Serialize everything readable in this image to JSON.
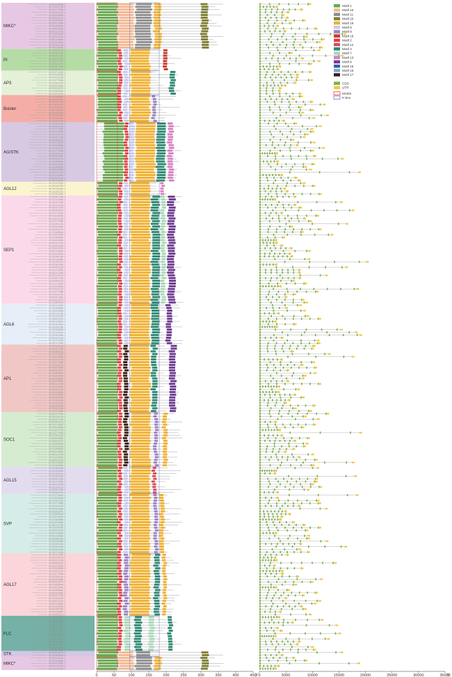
{
  "clades": [
    {
      "label": "MIKC*",
      "color": "#e7c8e4",
      "rows": 17
    },
    {
      "label": "PI",
      "color": "#b6dca6",
      "rows": 8
    },
    {
      "label": "AP3",
      "color": "#e4f1d8",
      "rows": 9
    },
    {
      "label": "Bsister",
      "color": "#f5aea7",
      "rows": 10
    },
    {
      "label": "AG/STK",
      "color": "#d7c9e2",
      "rows": 22
    },
    {
      "label": "AGL12",
      "color": "#fbf5cf",
      "rows": 5
    },
    {
      "label": "SEP1",
      "color": "#fbd9ea",
      "rows": 40
    },
    {
      "label": "AGL6",
      "color": "#e6eef7",
      "rows": 15
    },
    {
      "label": "AP1",
      "color": "#f1c7c6",
      "rows": 25
    },
    {
      "label": "SOC1",
      "color": "#d6ecd0",
      "rows": 20
    },
    {
      "label": "AGL15",
      "color": "#e3dcef",
      "rows": 10
    },
    {
      "label": "SVP",
      "color": "#d6ece8",
      "rows": 22
    },
    {
      "label": "AGL17",
      "color": "#fbd5d9",
      "rows": 23
    },
    {
      "label": "FLC",
      "color": "#75b1a6",
      "rows": 13
    },
    {
      "label": "STK",
      "color": "#d6c6e5",
      "rows": 2
    },
    {
      "label": "MIKC*",
      "color": "#e7c8e4",
      "rows": 5
    }
  ],
  "gene_labels": [
    "AT2G03060.2",
    "AT1G22130.1",
    "AT1G77980.1",
    "AT1G31140.1",
    "AT5G51860.1",
    "AT5G51870.1",
    "AT1G69540.1",
    "AT2G22540.1",
    "AT2G45660.1",
    "AT4G09960.1",
    "AT5G13790.1",
    "AT1G24260.1",
    "AT3G02310.1",
    "AT5G15800.1",
    "AT2G42830.1",
    "AT3G58780.1",
    "AT4G18960.1",
    "AT1G26310.1",
    "AT3G30260.1",
    "AT5G62165.1",
    "AT1G72350.1",
    "AT4G37940.1",
    "AT2G14210.1",
    "AT3G57230.1",
    "AT5G60910.1",
    "AT1G71692.1"
  ],
  "axes": {
    "protein_ticks": [
      "0",
      "50",
      "100",
      "150",
      "200",
      "250",
      "300",
      "350",
      "400",
      "450"
    ],
    "gene_ticks_left": [
      "3'"
    ],
    "gene_ticks": [
      "0",
      "5000",
      "10000",
      "15000",
      "20000",
      "25000",
      "30000",
      "35000"
    ],
    "gene_ticks_right": [
      "5'"
    ]
  },
  "legend": {
    "motifs": [
      {
        "label": "Motif 1",
        "color": "#6aa84f"
      },
      {
        "label": "Motif 10",
        "color": "#f3b894"
      },
      {
        "label": "Motif 11",
        "color": "#8f8f8f"
      },
      {
        "label": "Motif 20",
        "color": "#7f7f35"
      },
      {
        "label": "Motif 19",
        "color": "#f0b030"
      },
      {
        "label": "Motif 6",
        "color": "#c7c9ee"
      },
      {
        "label": "Motif 8",
        "color": "#9c82c4"
      },
      {
        "label": "Motif 18",
        "color": "#c63e2e"
      },
      {
        "label": "Motif 2",
        "color": "#e04040"
      },
      {
        "label": "Motif 12",
        "color": "#d64a5e"
      },
      {
        "label": "Motif 4",
        "color": "#2e8a72"
      },
      {
        "label": "Motif 7",
        "color": "#a8d8b8"
      },
      {
        "label": "Motif 13",
        "color": "#d882c4"
      },
      {
        "label": "Motif 9",
        "color": "#6f3d91"
      },
      {
        "label": "Motif 15",
        "color": "#3c5aa6"
      },
      {
        "label": "Motif 16",
        "color": "#6db0cf"
      },
      {
        "label": "Motif 17",
        "color": "#3a1f15"
      }
    ],
    "gene_items": [
      {
        "label": "CDS",
        "color": "#7fb24a"
      },
      {
        "label": "UTR",
        "color": "#f5c842"
      }
    ],
    "domain_items": [
      {
        "label": "MADS",
        "color": "#e04040"
      },
      {
        "label": "K-box",
        "color": "#7a7ab0"
      }
    ]
  }
}
